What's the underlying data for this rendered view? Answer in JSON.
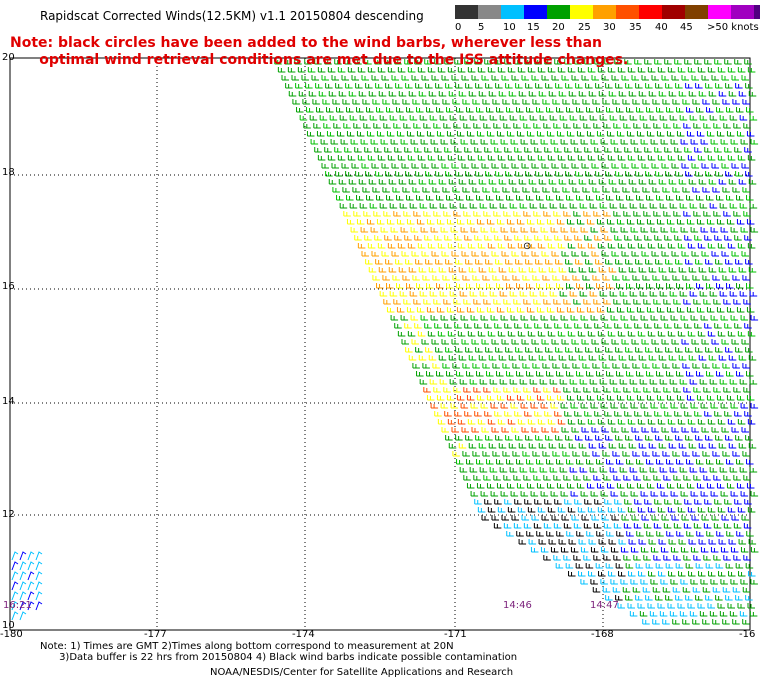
{
  "header": {
    "title": "Rapidscat Corrected Winds(12.5KM) v1.1 20150804 descending",
    "note_line1": "Note: black circles have been added to the wind barbs, wherever less than",
    "note_line2": "      optimal wind retrieval conditions are met due to the ISS attitude changes."
  },
  "legend": {
    "colors": [
      "#333333",
      "#888888",
      "#00c0ff",
      "#0000ff",
      "#00a000",
      "#ffff00",
      "#ffa000",
      "#ff5000",
      "#ff0000",
      "#a00000",
      "#804000",
      "#ff00ff",
      "#a000c0",
      "#500080"
    ],
    "labels": [
      "0",
      "5",
      "10",
      "15",
      "20",
      "25",
      "30",
      "35",
      "40",
      "45",
      ">50 knots"
    ]
  },
  "axes": {
    "lat_labels": [
      "20",
      "18",
      "16",
      "14",
      "12",
      "10"
    ],
    "lon_labels": [
      "-180",
      "-177",
      "-174",
      "-171",
      "-168",
      "-16"
    ]
  },
  "times": [
    "16:21",
    "14:46",
    "14:47"
  ],
  "footer": {
    "line1": "Note: 1) Times are GMT 2)Times along bottom correspond to measurement at 20N",
    "line2": "      3)Data buffer is 22 hrs from 20150804 4) Black wind barbs indicate possible contamination",
    "credit": "NOAA/NESDIS/Center for Satellite Applications and Research"
  }
}
